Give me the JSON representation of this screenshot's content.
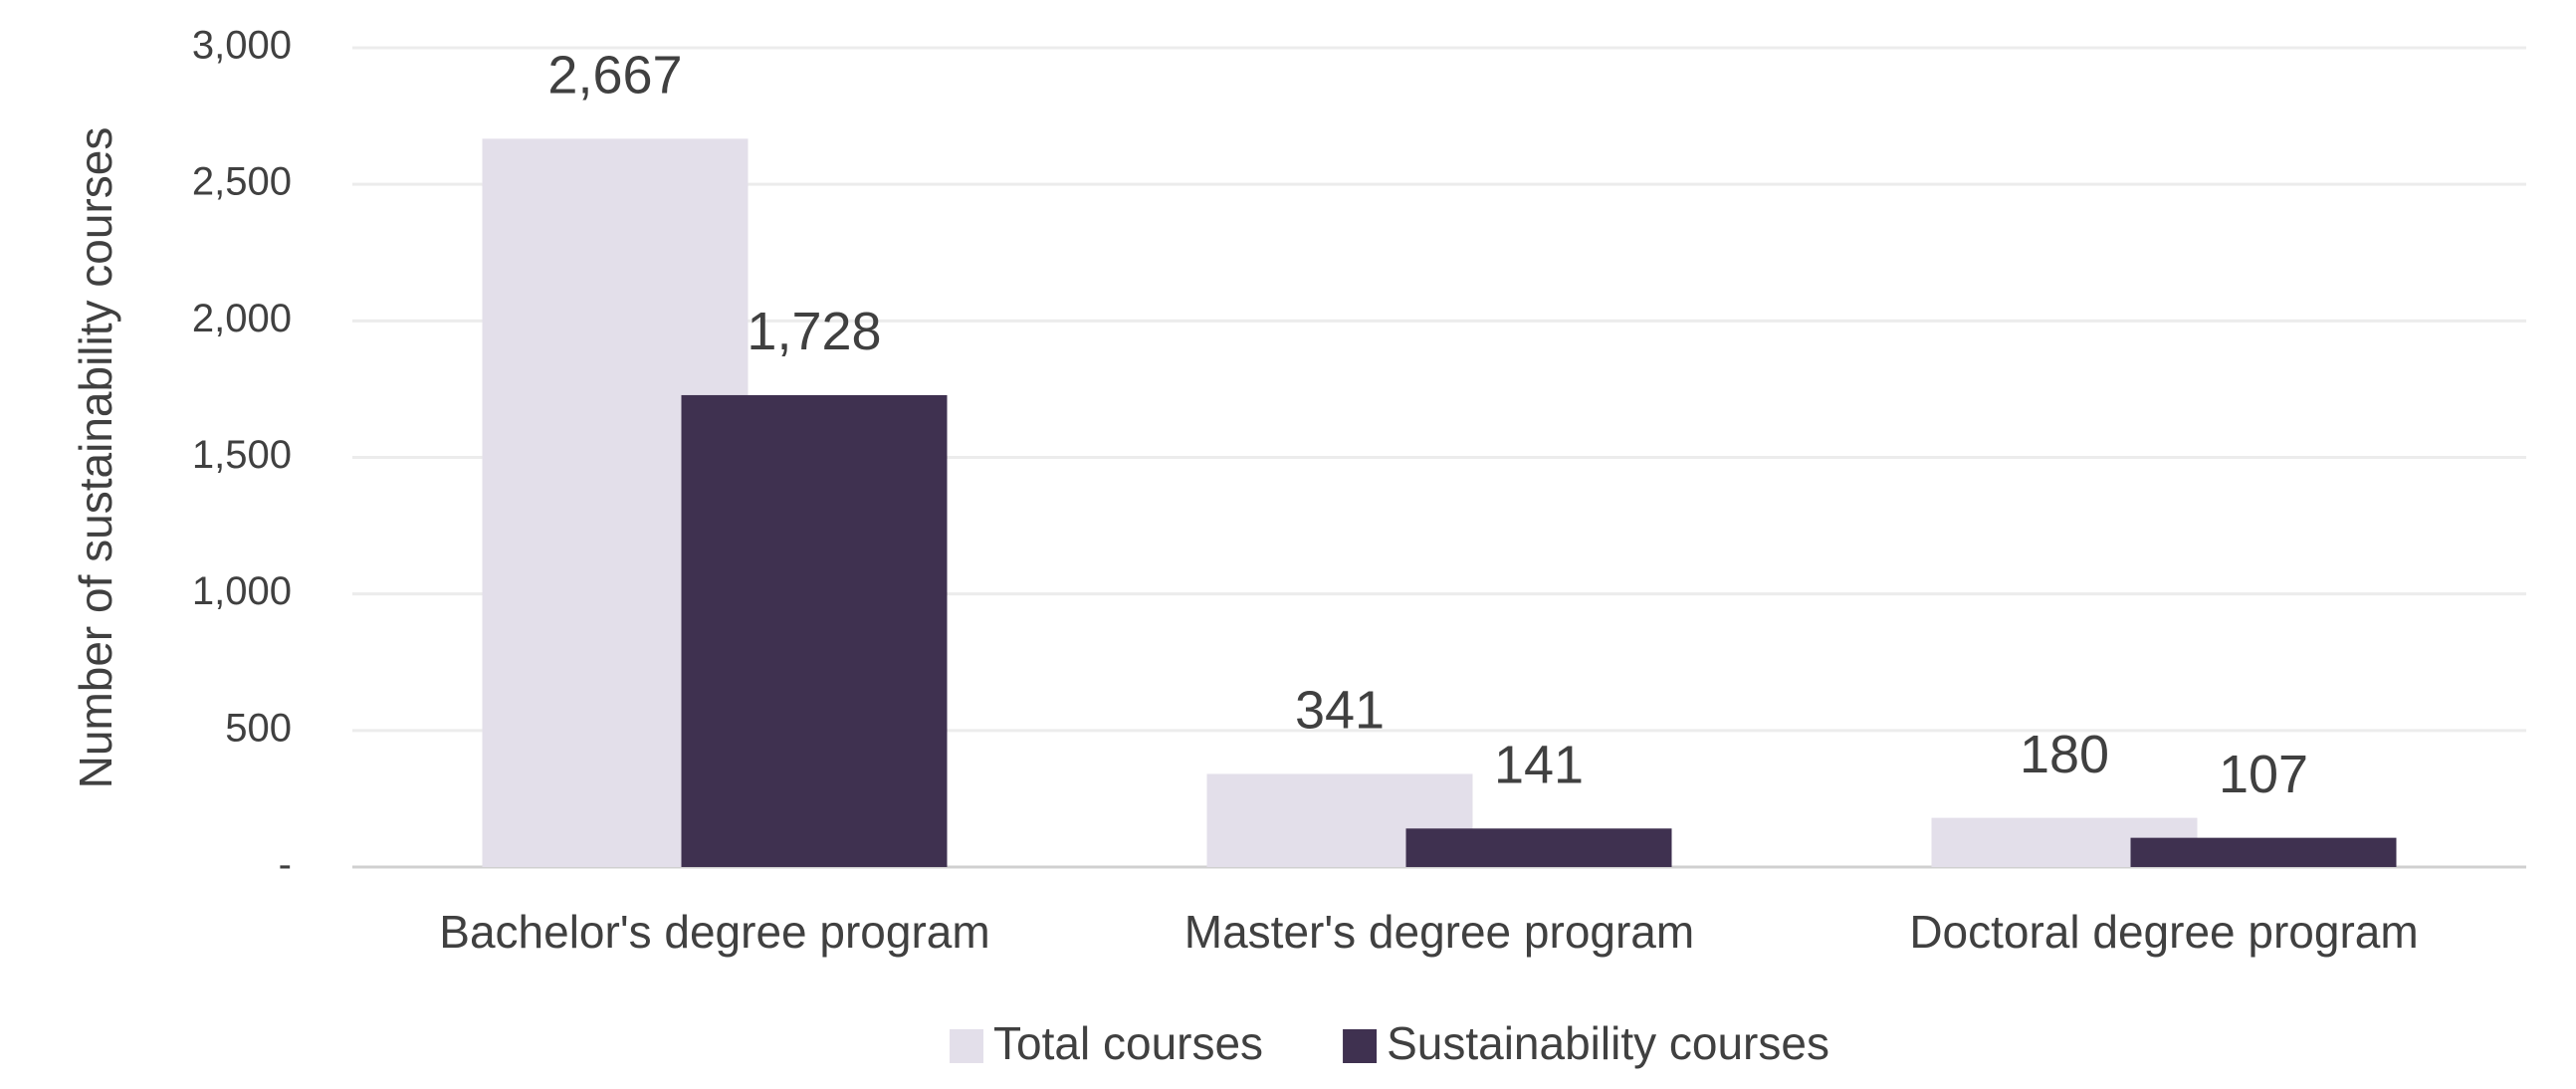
{
  "chart_data": {
    "type": "bar",
    "y_axis_label": "Number of sustainability courses",
    "categories": [
      "Bachelor's degree program",
      "Master's degree program",
      "Doctoral degree program"
    ],
    "series": [
      {
        "name": "Total courses",
        "color": "#e3dfea",
        "values": [
          2667,
          341,
          180
        ],
        "value_labels": [
          "2,667",
          "341",
          "180"
        ]
      },
      {
        "name": "Sustainability courses",
        "color": "#3f3150",
        "values": [
          1728,
          141,
          107
        ],
        "value_labels": [
          "1,728",
          "141",
          "107"
        ]
      }
    ],
    "ylim": [
      0,
      3000
    ],
    "yticks": [
      {
        "value": 0,
        "label": "-"
      },
      500,
      {
        "value": 1000,
        "label": "1,000"
      },
      {
        "value": 1500,
        "label": "1,500"
      },
      {
        "value": 2000,
        "label": "2,000"
      },
      {
        "value": 2500,
        "label": "2,500"
      },
      {
        "value": 3000,
        "label": "3,000"
      }
    ],
    "grid": true,
    "legend": "bottom"
  }
}
